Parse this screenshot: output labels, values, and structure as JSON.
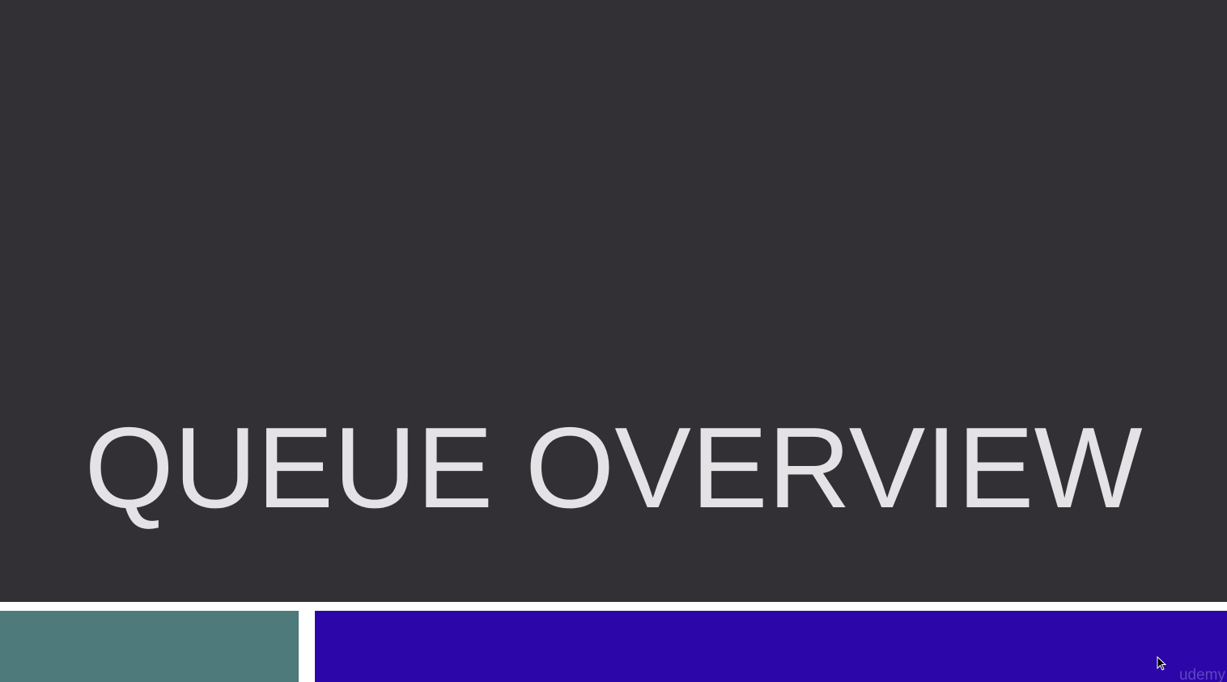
{
  "slide": {
    "title": "QUEUE OVERVIEW"
  },
  "watermark": {
    "text": "udemy"
  },
  "colors": {
    "title_background": "#323034",
    "title_text": "#e4e2e5",
    "left_bar": "#4f7a7b",
    "right_bar": "#2d06aa",
    "divider": "#ffffff"
  },
  "icons": {
    "cursor": "mouse-pointer-icon"
  }
}
